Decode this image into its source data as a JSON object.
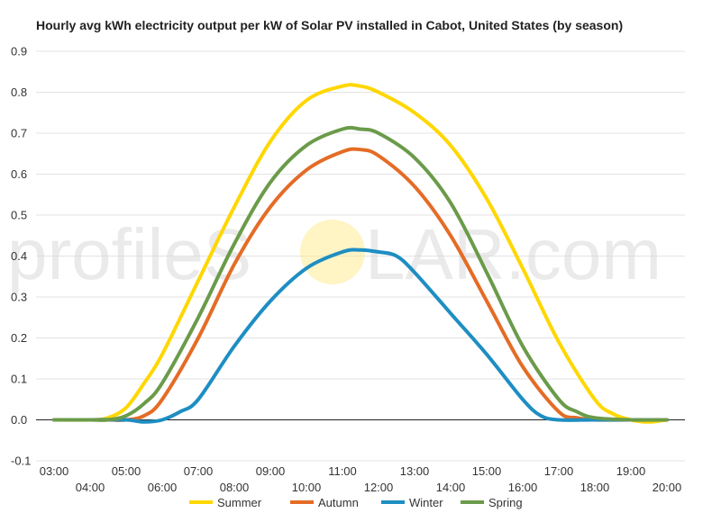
{
  "chart_data": {
    "type": "line",
    "title": "Hourly avg kWh electricity output per kW of Solar PV installed in Cabot, United States (by season)",
    "xlabel": "",
    "ylabel": "",
    "x_ticks": [
      "03:00",
      "04:00",
      "05:00",
      "06:00",
      "07:00",
      "08:00",
      "09:00",
      "10:00",
      "11:00",
      "12:00",
      "13:00",
      "14:00",
      "15:00",
      "16:00",
      "17:00",
      "18:00",
      "19:00",
      "20:00"
    ],
    "y_ticks": [
      "0.9",
      "0.8",
      "0.7",
      "0.6",
      "0.5",
      "0.4",
      "0.3",
      "0.2",
      "0.1",
      "0.0",
      "-0.1"
    ],
    "ylim": [
      -0.1,
      0.9
    ],
    "grid": true,
    "legend_position": "bottom",
    "series": [
      {
        "name": "Summer",
        "color": "#FFD700",
        "x": [
          3,
          4,
          4.5,
          5,
          5.5,
          6,
          7,
          8,
          9,
          10,
          11,
          11.5,
          12,
          13,
          14,
          15,
          16,
          17,
          18,
          18.5,
          19,
          19.5,
          20
        ],
        "y": [
          0.0,
          0.0,
          0.005,
          0.03,
          0.09,
          0.16,
          0.34,
          0.52,
          0.68,
          0.78,
          0.815,
          0.815,
          0.8,
          0.75,
          0.67,
          0.54,
          0.37,
          0.19,
          0.05,
          0.015,
          0.0,
          -0.005,
          0.0
        ]
      },
      {
        "name": "Autumn",
        "color": "#E46C26",
        "x": [
          3,
          4,
          4.5,
          5,
          5.5,
          6,
          7,
          8,
          9,
          10,
          11,
          11.5,
          12,
          13,
          14,
          15,
          16,
          17,
          17.5,
          18,
          19,
          20
        ],
        "y": [
          0.0,
          0.0,
          0.0,
          0.0,
          0.01,
          0.05,
          0.2,
          0.38,
          0.52,
          0.61,
          0.655,
          0.66,
          0.645,
          0.57,
          0.45,
          0.29,
          0.13,
          0.02,
          0.005,
          0.0,
          0.0,
          0.0
        ]
      },
      {
        "name": "Winter",
        "color": "#1E8EC2",
        "x": [
          3,
          4,
          5,
          5.5,
          6,
          6.5,
          7,
          8,
          9,
          10,
          11,
          11.5,
          12,
          12.5,
          13,
          14,
          15,
          16,
          16.5,
          17,
          18,
          19,
          20
        ],
        "y": [
          0.0,
          0.0,
          0.0,
          -0.005,
          0.0,
          0.02,
          0.05,
          0.18,
          0.29,
          0.37,
          0.41,
          0.415,
          0.41,
          0.4,
          0.36,
          0.26,
          0.16,
          0.05,
          0.01,
          0.0,
          0.0,
          0.0,
          0.0
        ]
      },
      {
        "name": "Spring",
        "color": "#6B9B4A",
        "x": [
          3,
          4,
          4.5,
          5,
          5.5,
          6,
          7,
          8,
          9,
          10,
          11,
          11.5,
          12,
          13,
          14,
          15,
          16,
          17,
          17.5,
          18,
          19,
          20
        ],
        "y": [
          0.0,
          0.0,
          0.0,
          0.01,
          0.04,
          0.09,
          0.25,
          0.43,
          0.58,
          0.67,
          0.71,
          0.71,
          0.7,
          0.64,
          0.53,
          0.36,
          0.18,
          0.05,
          0.02,
          0.005,
          0.0,
          0.0
        ]
      }
    ]
  },
  "watermark": {
    "text_left": "profileS",
    "text_right": "LAR.com",
    "sun_color": "#FFE98A"
  }
}
